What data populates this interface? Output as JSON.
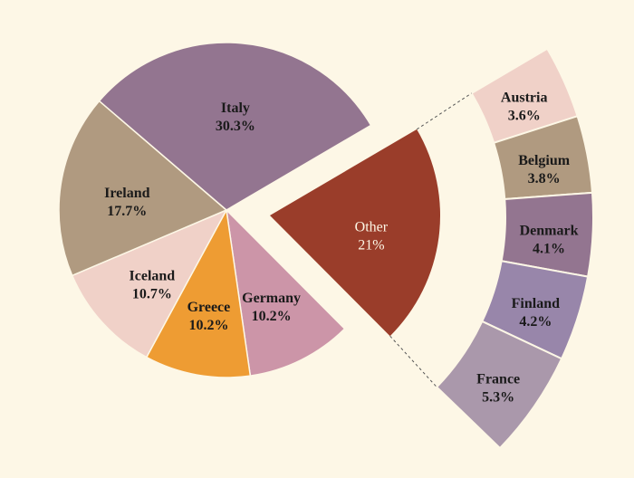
{
  "chart_data": {
    "type": "pie",
    "variant": "bar-of-pie (ring breakdown of exploded slice)",
    "background": "#fdf7e6",
    "main_slices": [
      {
        "label": "Other",
        "value": 21,
        "display": "21%",
        "color": "#9a3d2a",
        "text_color": "#fdf7e6",
        "exploded": true
      },
      {
        "label": "Germany",
        "value": 10.2,
        "display": "10.2%",
        "color": "#cc95a8"
      },
      {
        "label": "Greece",
        "value": 10.2,
        "display": "10.2%",
        "color": "#ee9c33"
      },
      {
        "label": "Iceland",
        "value": 10.7,
        "display": "10.7%",
        "color": "#f0d1c8"
      },
      {
        "label": "Ireland",
        "value": 17.7,
        "display": "17.7%",
        "color": "#b09a80"
      },
      {
        "label": "Italy",
        "value": 30.3,
        "display": "30.3%",
        "color": "#937590"
      }
    ],
    "breakdown_slices": [
      {
        "label": "Austria",
        "value": 3.6,
        "display": "3.6%",
        "color": "#f0d1c8"
      },
      {
        "label": "Belgium",
        "value": 3.8,
        "display": "3.8%",
        "color": "#b09a80"
      },
      {
        "label": "Denmark",
        "value": 4.1,
        "display": "4.1%",
        "color": "#937590"
      },
      {
        "label": "Finland",
        "value": 4.2,
        "display": "4.2%",
        "color": "#9886aa"
      },
      {
        "label": "France",
        "value": 5.3,
        "display": "5.3%",
        "color": "#aa98ab"
      }
    ]
  }
}
